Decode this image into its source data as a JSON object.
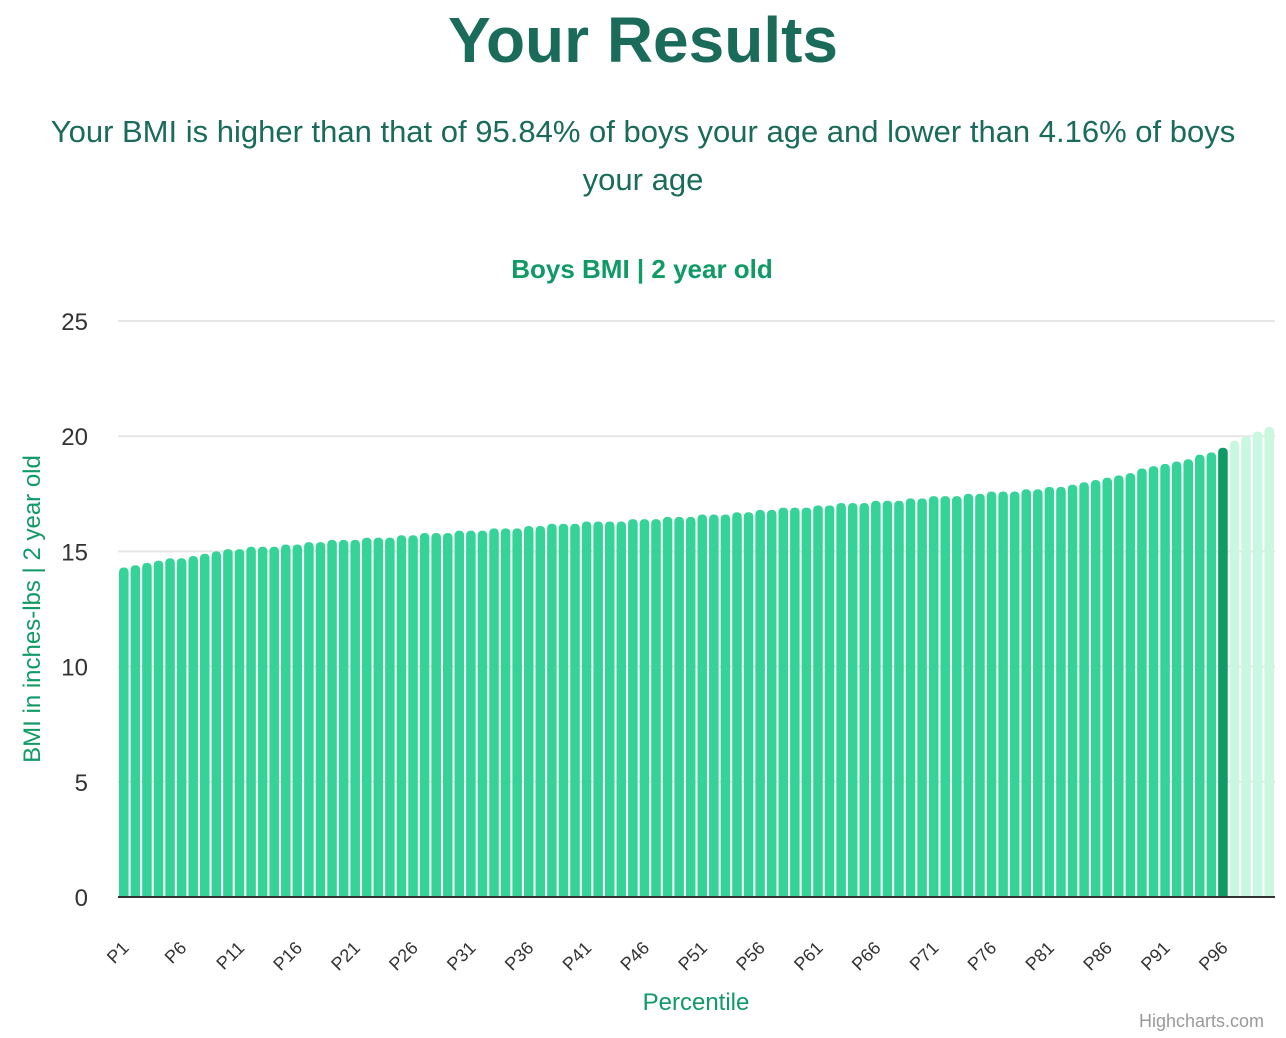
{
  "page": {
    "title": "Your Results",
    "summary": "Your BMI is higher than that of 95.84% of boys your age and lower than 4.16% of boys your age"
  },
  "chart_data": {
    "type": "bar",
    "title": "Boys BMI | 2 year old",
    "xlabel": "Percentile",
    "ylabel": "BMI in inches-lbs | 2 year old",
    "ylim": [
      0,
      25
    ],
    "yticks": [
      0,
      5,
      10,
      15,
      20,
      25
    ],
    "grid": true,
    "legend": "none",
    "credits": "Highcharts.com",
    "highlight_category": "P96",
    "colors": {
      "bar": "#36d399",
      "highlight": "#0f9a66",
      "above": "#c9f7df",
      "grid": "#e6e6e6",
      "axis": "#333333"
    },
    "categories": [
      "P1",
      "P2",
      "P3",
      "P4",
      "P5",
      "P6",
      "P7",
      "P8",
      "P9",
      "P10",
      "P11",
      "P12",
      "P13",
      "P14",
      "P15",
      "P16",
      "P17",
      "P18",
      "P19",
      "P20",
      "P21",
      "P22",
      "P23",
      "P24",
      "P25",
      "P26",
      "P27",
      "P28",
      "P29",
      "P30",
      "P31",
      "P32",
      "P33",
      "P34",
      "P35",
      "P36",
      "P37",
      "P38",
      "P39",
      "P40",
      "P41",
      "P42",
      "P43",
      "P44",
      "P45",
      "P46",
      "P47",
      "P48",
      "P49",
      "P50",
      "P51",
      "P52",
      "P53",
      "P54",
      "P55",
      "P56",
      "P57",
      "P58",
      "P59",
      "P60",
      "P61",
      "P62",
      "P63",
      "P64",
      "P65",
      "P66",
      "P67",
      "P68",
      "P69",
      "P70",
      "P71",
      "P72",
      "P73",
      "P74",
      "P75",
      "P76",
      "P77",
      "P78",
      "P79",
      "P80",
      "P81",
      "P82",
      "P83",
      "P84",
      "P85",
      "P86",
      "P87",
      "P88",
      "P89",
      "P90",
      "P91",
      "P92",
      "P93",
      "P94",
      "P95",
      "P96",
      "P97",
      "P98",
      "P99",
      "P100"
    ],
    "values": [
      14.3,
      14.4,
      14.5,
      14.6,
      14.7,
      14.7,
      14.8,
      14.9,
      15.0,
      15.1,
      15.1,
      15.2,
      15.2,
      15.2,
      15.3,
      15.3,
      15.4,
      15.4,
      15.5,
      15.5,
      15.5,
      15.6,
      15.6,
      15.6,
      15.7,
      15.7,
      15.8,
      15.8,
      15.8,
      15.9,
      15.9,
      15.9,
      16.0,
      16.0,
      16.0,
      16.1,
      16.1,
      16.2,
      16.2,
      16.2,
      16.3,
      16.3,
      16.3,
      16.3,
      16.4,
      16.4,
      16.4,
      16.5,
      16.5,
      16.5,
      16.6,
      16.6,
      16.6,
      16.7,
      16.7,
      16.8,
      16.8,
      16.9,
      16.9,
      16.9,
      17.0,
      17.0,
      17.1,
      17.1,
      17.1,
      17.2,
      17.2,
      17.2,
      17.3,
      17.3,
      17.4,
      17.4,
      17.4,
      17.5,
      17.5,
      17.6,
      17.6,
      17.6,
      17.7,
      17.7,
      17.8,
      17.8,
      17.9,
      18.0,
      18.1,
      18.2,
      18.3,
      18.4,
      18.6,
      18.7,
      18.8,
      18.9,
      19.0,
      19.2,
      19.3,
      19.5,
      19.8,
      20.0,
      20.2,
      20.4
    ]
  }
}
